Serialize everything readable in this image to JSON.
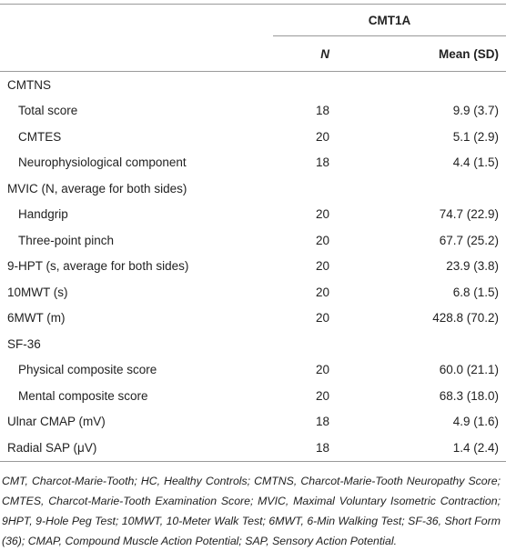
{
  "table": {
    "group_header": "CMT1A",
    "columns": [
      "N",
      "Mean (SD)"
    ],
    "rows": [
      {
        "label": "CMTNS"
      },
      {
        "label": "Total score",
        "indent": true,
        "n": "18",
        "mean": "9.9 (3.7)"
      },
      {
        "label": "CMTES",
        "indent": true,
        "n": "20",
        "mean": "5.1 (2.9)"
      },
      {
        "label": "Neurophysiological component",
        "indent": true,
        "n": "18",
        "mean": "4.4 (1.5)"
      },
      {
        "label": "MVIC (N, average for both sides)"
      },
      {
        "label": "Handgrip",
        "indent": true,
        "n": "20",
        "mean": "74.7 (22.9)"
      },
      {
        "label": "Three-point pinch",
        "indent": true,
        "n": "20",
        "mean": "67.7 (25.2)"
      },
      {
        "label": "9-HPT (s, average for both sides)",
        "n": "20",
        "mean": "23.9 (3.8)"
      },
      {
        "label": "10MWT (s)",
        "n": "20",
        "mean": "6.8 (1.5)"
      },
      {
        "label": "6MWT (m)",
        "n": "20",
        "mean": "428.8 (70.2)"
      },
      {
        "label": "SF-36"
      },
      {
        "label": "Physical composite score",
        "indent": true,
        "n": "20",
        "mean": "60.0 (21.1)"
      },
      {
        "label": "Mental composite score",
        "indent": true,
        "n": "20",
        "mean": "68.3 (18.0)"
      },
      {
        "label": "Ulnar CMAP (mV)",
        "n": "18",
        "mean": "4.9 (1.6)"
      },
      {
        "label": "Radial SAP (μV)",
        "n": "18",
        "mean": "1.4 (2.4)"
      }
    ]
  },
  "footnote": "CMT, Charcot-Marie-Tooth; HC, Healthy Controls; CMTNS, Charcot-Marie-Tooth Neuropathy Score; CMTES, Charcot-Marie-Tooth Examination Score; MVIC, Maximal Voluntary Isometric Contraction; 9HPT, 9-Hole Peg Test; 10MWT, 10-Meter Walk Test; 6MWT, 6-Min Walking Test; SF-36, Short Form (36); CMAP, Compound Muscle Action Potential; SAP, Sensory Action Potential."
}
